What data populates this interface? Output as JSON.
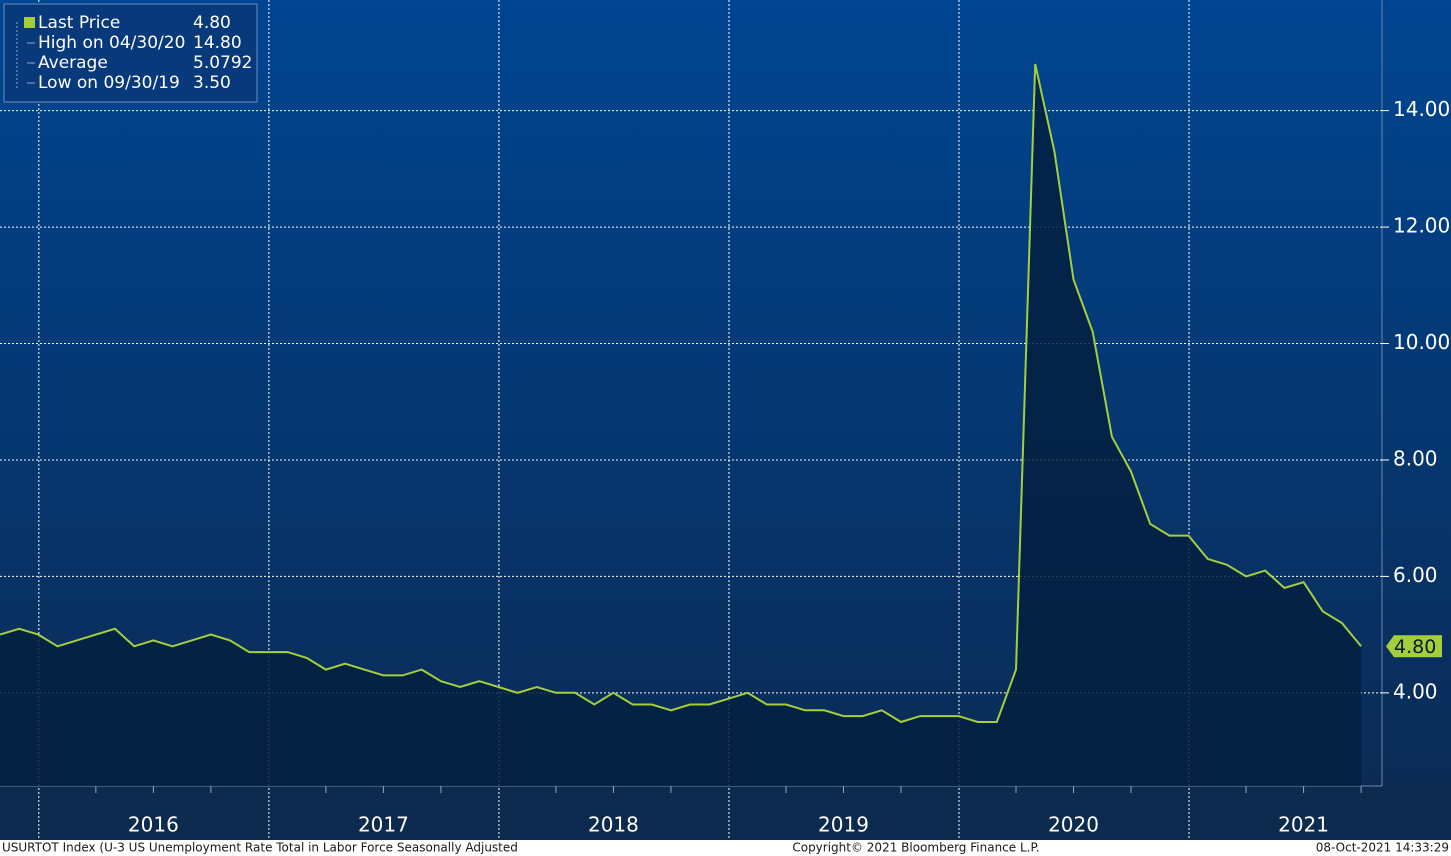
{
  "chart_data": {
    "type": "line",
    "series": [
      {
        "name": "Last Price",
        "color": "#a4cf3c",
        "values": [
          5.0,
          5.1,
          5.0,
          4.8,
          4.9,
          5.0,
          5.1,
          4.8,
          4.9,
          4.8,
          4.9,
          5.0,
          4.9,
          4.7,
          4.7,
          4.7,
          4.6,
          4.4,
          4.5,
          4.4,
          4.3,
          4.3,
          4.4,
          4.2,
          4.1,
          4.2,
          4.1,
          4.0,
          4.1,
          4.0,
          4.0,
          3.8,
          4.0,
          3.8,
          3.8,
          3.7,
          3.8,
          3.8,
          3.9,
          4.0,
          3.8,
          3.8,
          3.7,
          3.7,
          3.6,
          3.6,
          3.7,
          3.5,
          3.6,
          3.6,
          3.6,
          3.5,
          3.5,
          4.4,
          14.8,
          13.3,
          11.1,
          10.2,
          8.4,
          7.8,
          6.9,
          6.7,
          6.7,
          6.3,
          6.2,
          6.0,
          6.1,
          5.8,
          5.9,
          5.4,
          5.2,
          4.8
        ]
      }
    ],
    "year_labels": [
      "2016",
      "2017",
      "2018",
      "2019",
      "2020",
      "2021"
    ],
    "ylim": [
      2.4,
      15.9
    ],
    "yticks": [
      {
        "value": 4,
        "label": "4.00"
      },
      {
        "value": 6,
        "label": "6.00"
      },
      {
        "value": 8,
        "label": "8.00"
      },
      {
        "value": 10,
        "label": "10.00"
      },
      {
        "value": 12,
        "label": "12.00"
      },
      {
        "value": 14,
        "label": "14.00"
      }
    ],
    "grid": true,
    "legend": [
      {
        "label": "Last Price",
        "value": "4.80"
      },
      {
        "label": "High on 04/30/20",
        "value": "14.80"
      },
      {
        "label": "Average",
        "value": "5.0792"
      },
      {
        "label": "Low on 09/30/19",
        "value": "3.50"
      }
    ],
    "last_price_tag": "4.80",
    "footer": {
      "left": "USURTOT Index (U-3 US Unemployment Rate Total in Labor Force Seasonally Adjusted",
      "center": "Copyright© 2021 Bloomberg Finance L.P.",
      "right": "08-Oct-2021 14:33:29"
    }
  }
}
